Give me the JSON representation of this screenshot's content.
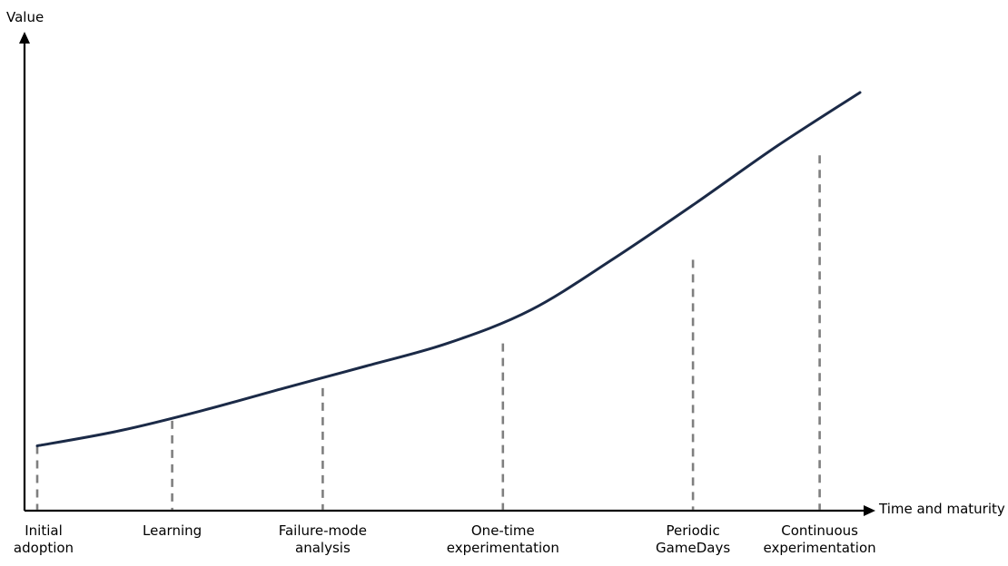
{
  "chart_data": {
    "type": "line",
    "title": "",
    "xlabel": "Time and maturity",
    "ylabel": "Value",
    "grid": false,
    "legend": "none",
    "colors": {
      "curve": "#1b2a47",
      "stage_markers": "#7f7f7f",
      "axes": "#000000"
    },
    "xlim": [
      0,
      100
    ],
    "ylim": [
      0,
      100
    ],
    "curve": {
      "x": [
        0,
        10,
        20,
        30,
        40,
        50,
        60,
        70,
        80,
        90,
        100
      ],
      "y": [
        15.5,
        19.1,
        23.9,
        29.3,
        34.6,
        40.1,
        48.0,
        60.2,
        73.5,
        87.3,
        100
      ]
    },
    "stages": [
      {
        "lines": [
          "Initial",
          "adoption"
        ],
        "x": 0,
        "y": 15.5
      },
      {
        "lines": [
          "Learning"
        ],
        "x": 16.4,
        "y": 21.5
      },
      {
        "lines": [
          "Failure-mode",
          "analysis"
        ],
        "x": 34.7,
        "y": 29.3
      },
      {
        "lines": [
          "One-time",
          "experimentation"
        ],
        "x": 56.6,
        "y": 40.0
      },
      {
        "lines": [
          "Periodic",
          "GameDays"
        ],
        "x": 79.7,
        "y": 60.0
      },
      {
        "lines": [
          "Continuous",
          "experimentation"
        ],
        "x": 95.1,
        "y": 85.0
      }
    ]
  }
}
